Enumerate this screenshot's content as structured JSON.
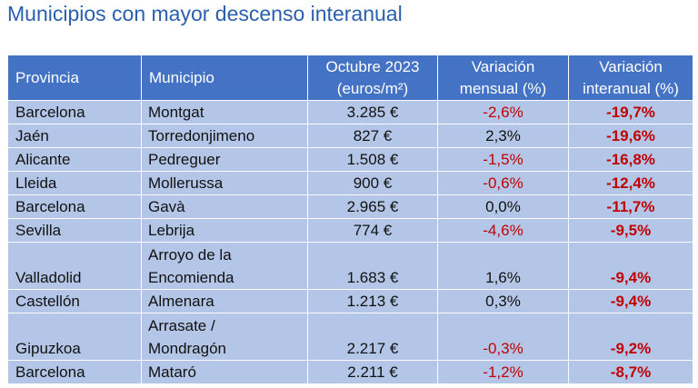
{
  "title": "Municipios con mayor descenso interanual",
  "headers": {
    "provincia": "Provincia",
    "municipio": "Municipio",
    "precio_line1": "Octubre 2023",
    "precio_line2": "(euros/m²)",
    "mensual_line1": "Variación",
    "mensual_line2": "mensual (%)",
    "interanual_line1": "Variación",
    "interanual_line2": "interanual (%)"
  },
  "rows": [
    {
      "provincia": "Barcelona",
      "municipio": [
        "Montgat"
      ],
      "precio": "3.285 €",
      "mensual": "-2,6%",
      "interanual": "-19,7%"
    },
    {
      "provincia": "Jaén",
      "municipio": [
        "Torredonjimeno"
      ],
      "precio": "827 €",
      "mensual": "2,3%",
      "interanual": "-19,6%"
    },
    {
      "provincia": "Alicante",
      "municipio": [
        "Pedreguer"
      ],
      "precio": "1.508 €",
      "mensual": "-1,5%",
      "interanual": "-16,8%"
    },
    {
      "provincia": "Lleida",
      "municipio": [
        "Mollerussa"
      ],
      "precio": "900 €",
      "mensual": "-0,6%",
      "interanual": "-12,4%"
    },
    {
      "provincia": "Barcelona",
      "municipio": [
        "Gavà"
      ],
      "precio": "2.965 €",
      "mensual": "0,0%",
      "interanual": "-11,7%"
    },
    {
      "provincia": "Sevilla",
      "municipio": [
        "Lebrija"
      ],
      "precio": "774 €",
      "mensual": "-4,6%",
      "interanual": "-9,5%"
    },
    {
      "provincia": "Valladolid",
      "municipio": [
        "Arroyo de la",
        "Encomienda"
      ],
      "precio": "1.683 €",
      "mensual": "1,6%",
      "interanual": "-9,4%"
    },
    {
      "provincia": "Castellón",
      "municipio": [
        "Almenara"
      ],
      "precio": "1.213 €",
      "mensual": "0,3%",
      "interanual": "-9,4%"
    },
    {
      "provincia": "Gipuzkoa",
      "municipio": [
        "Arrasate /",
        "Mondragón"
      ],
      "precio": "2.217 €",
      "mensual": "-0,3%",
      "interanual": "-9,2%"
    },
    {
      "provincia": "Barcelona",
      "municipio": [
        "Mataró"
      ],
      "precio": "2.211 €",
      "mensual": "-1,2%",
      "interanual": "-8,7%"
    }
  ]
}
